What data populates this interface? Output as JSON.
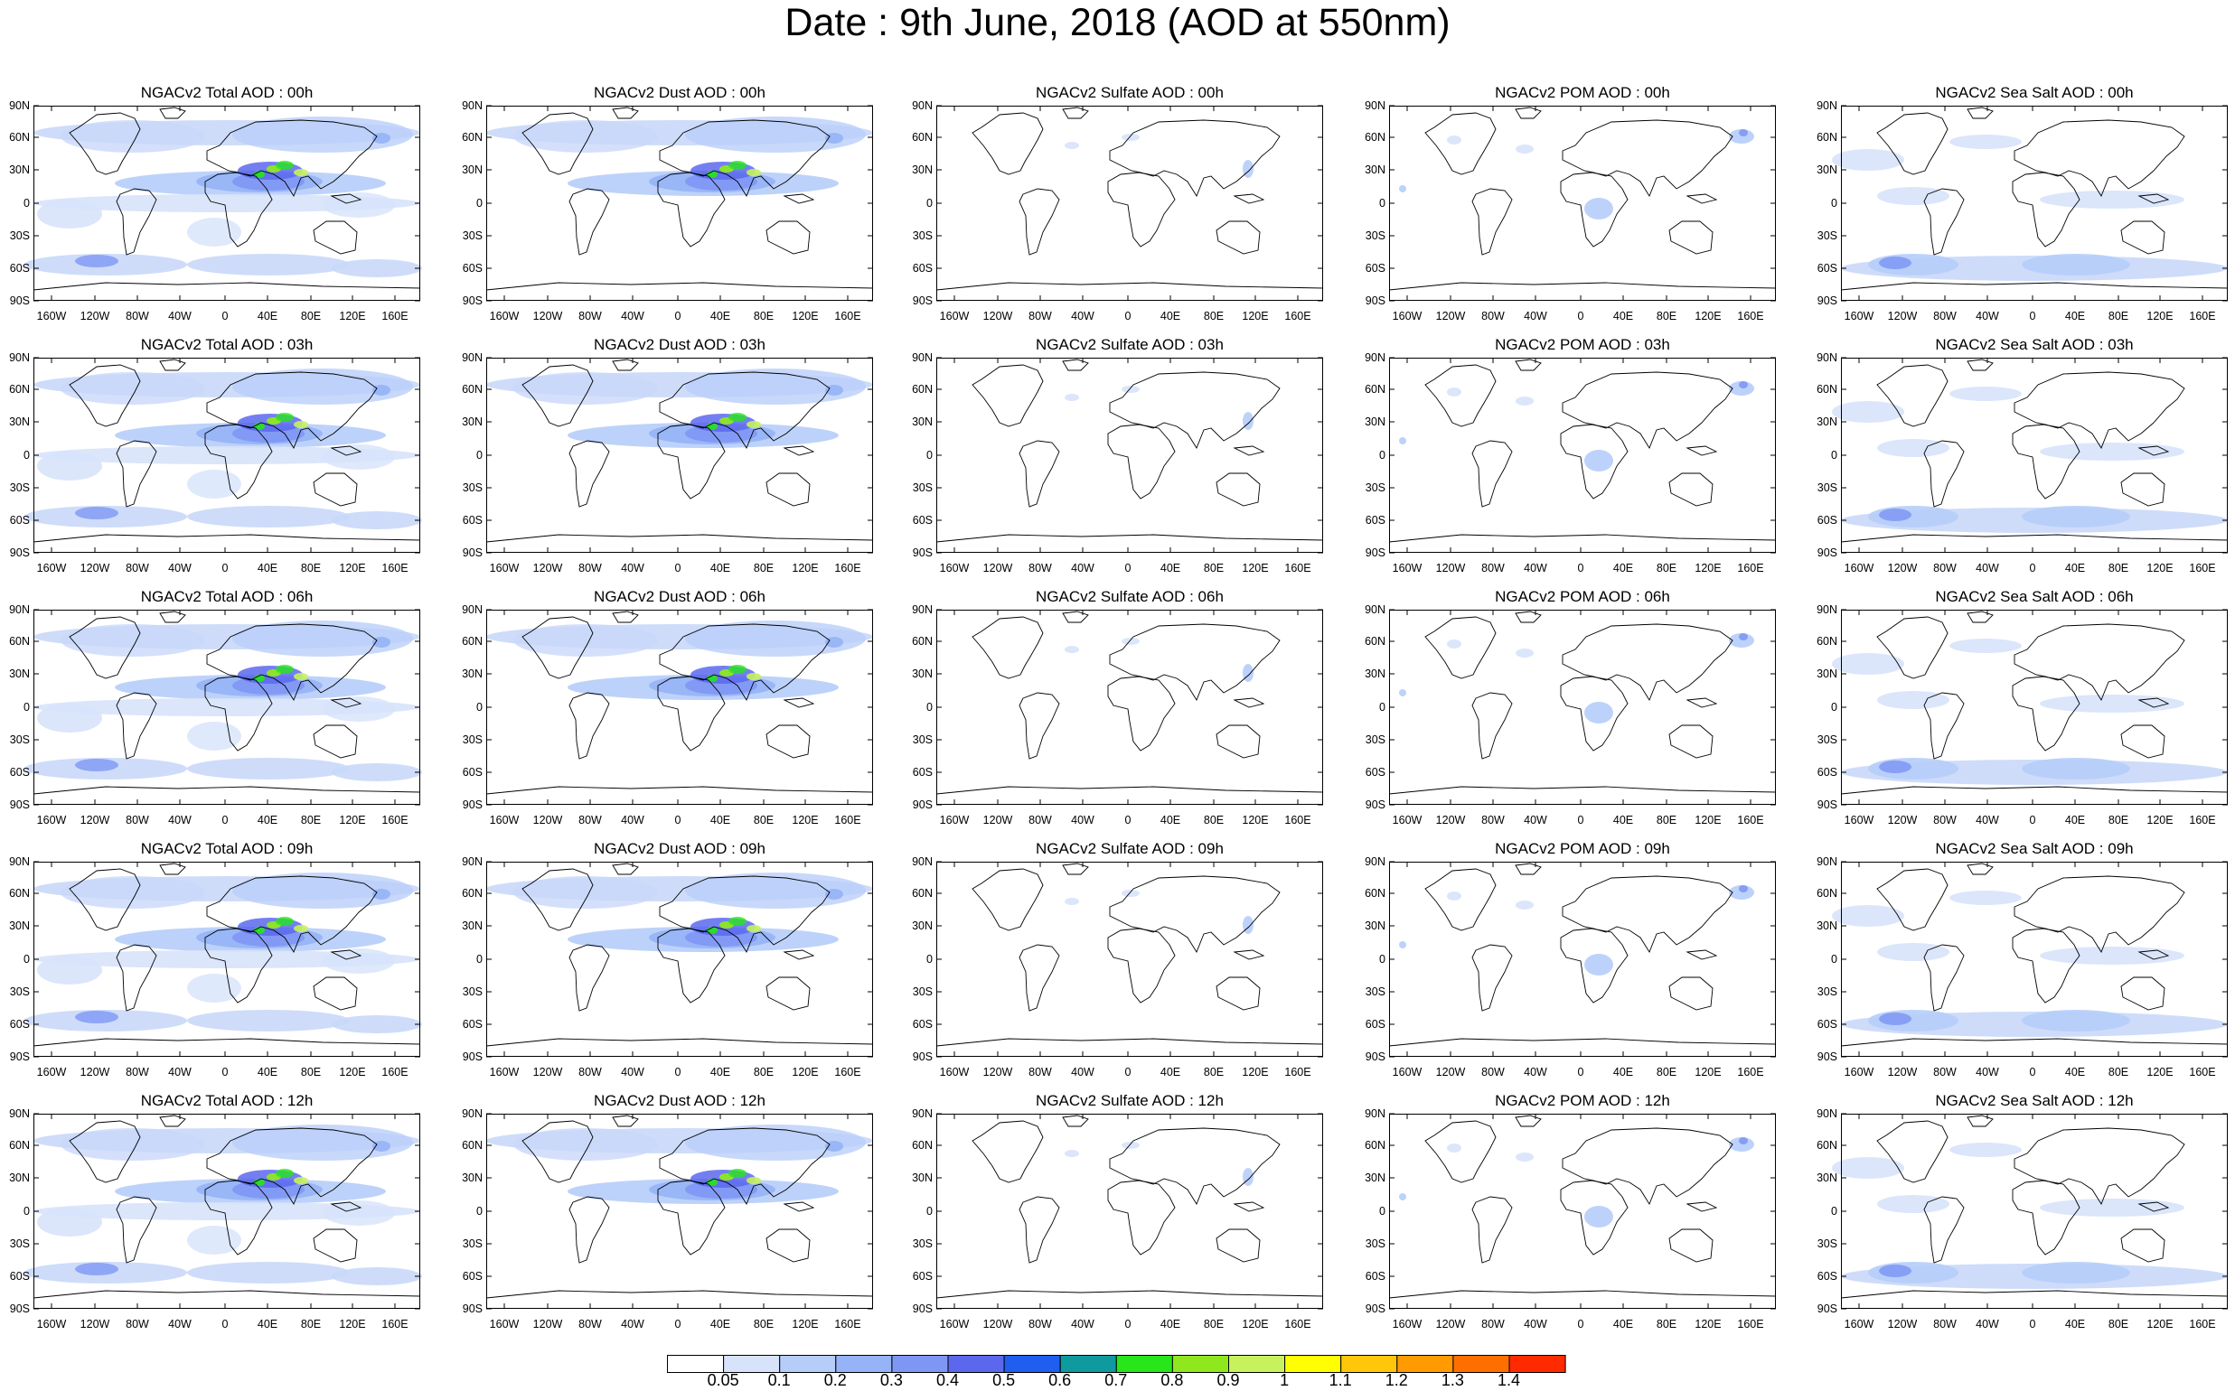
{
  "title": "Date : 9th June, 2018 (AOD at 550nm)",
  "lat_labels": [
    "90N",
    "60N",
    "30N",
    "0",
    "30S",
    "60S",
    "90S"
  ],
  "lon_labels": [
    "160W",
    "120W",
    "80W",
    "40W",
    "0",
    "40E",
    "80E",
    "120E",
    "160E"
  ],
  "panels": [
    {
      "title": "NGACv2 Total AOD : 00h",
      "species": "total"
    },
    {
      "title": "NGACv2 Dust AOD : 00h",
      "species": "dust"
    },
    {
      "title": "NGACv2 Sulfate AOD : 00h",
      "species": "sulfate"
    },
    {
      "title": "NGACv2 POM AOD : 00h",
      "species": "pom"
    },
    {
      "title": "NGACv2 Sea Salt AOD : 00h",
      "species": "seasalt"
    },
    {
      "title": "NGACv2 Total AOD : 03h",
      "species": "total"
    },
    {
      "title": "NGACv2 Dust AOD : 03h",
      "species": "dust"
    },
    {
      "title": "NGACv2 Sulfate AOD : 03h",
      "species": "sulfate"
    },
    {
      "title": "NGACv2 POM AOD : 03h",
      "species": "pom"
    },
    {
      "title": "NGACv2 Sea Salt AOD : 03h",
      "species": "seasalt"
    },
    {
      "title": "NGACv2 Total AOD : 06h",
      "species": "total"
    },
    {
      "title": "NGACv2 Dust AOD : 06h",
      "species": "dust"
    },
    {
      "title": "NGACv2 Sulfate AOD : 06h",
      "species": "sulfate"
    },
    {
      "title": "NGACv2 POM AOD : 06h",
      "species": "pom"
    },
    {
      "title": "NGACv2 Sea Salt AOD : 06h",
      "species": "seasalt"
    },
    {
      "title": "NGACv2 Total AOD : 09h",
      "species": "total"
    },
    {
      "title": "NGACv2 Dust AOD : 09h",
      "species": "dust"
    },
    {
      "title": "NGACv2 Sulfate AOD : 09h",
      "species": "sulfate"
    },
    {
      "title": "NGACv2 POM AOD : 09h",
      "species": "pom"
    },
    {
      "title": "NGACv2 Sea Salt  AOD : 09h",
      "species": "seasalt"
    },
    {
      "title": "NGACv2 Total AOD  : 12h",
      "species": "total"
    },
    {
      "title": "NGACv2 Dust AOD : 12h",
      "species": "dust"
    },
    {
      "title": "NGACv2 Sulfate AOD : 12h",
      "species": "sulfate"
    },
    {
      "title": "NGACv2 POM  AOD : 12h",
      "species": "pom"
    },
    {
      "title": "NGACv2 Sea Salt AOD : 12h",
      "species": "seasalt"
    }
  ],
  "colorbar": {
    "labels": [
      "0.05",
      "0.1",
      "0.2",
      "0.3",
      "0.4",
      "0.5",
      "0.6",
      "0.7",
      "0.8",
      "0.9",
      "1",
      "1.1",
      "1.2",
      "1.3",
      "1.4"
    ],
    "colors": [
      "#ffffff",
      "#d7e3fb",
      "#b6cdf9",
      "#95b3f6",
      "#7f97f4",
      "#5b68ee",
      "#1f5ef0",
      "#0e9a9e",
      "#27e61a",
      "#8fe81d",
      "#c7f25d",
      "#ffff00",
      "#ffc60a",
      "#ff9b00",
      "#ff6f00",
      "#ff2a00"
    ]
  }
}
